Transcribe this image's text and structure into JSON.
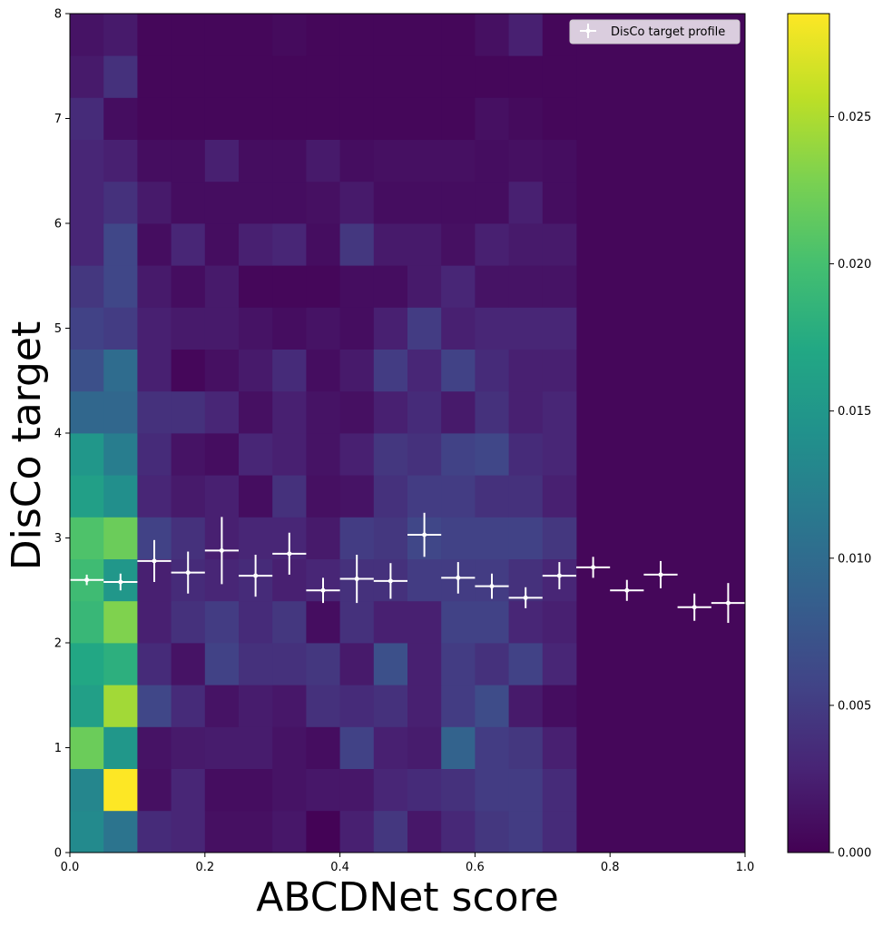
{
  "chart_data": {
    "type": "heatmap",
    "title": "",
    "xlabel": "ABCDNet score",
    "ylabel": "DisCo target",
    "xlim": [
      0,
      1
    ],
    "ylim": [
      0,
      8
    ],
    "xticks": [
      "0.0",
      "0.2",
      "0.4",
      "0.6",
      "0.8",
      "1.0"
    ],
    "yticks": [
      "0",
      "1",
      "2",
      "3",
      "4",
      "5",
      "6",
      "7",
      "8"
    ],
    "colorbar": {
      "min": 0,
      "max": 0.0285,
      "ticks": [
        "0.000",
        "0.005",
        "0.010",
        "0.015",
        "0.020",
        "0.025"
      ],
      "colormap": "viridis"
    },
    "heatmap": {
      "x_bin_count": 15,
      "x_bin_width": 0.05,
      "y_bin_height": 0.4,
      "rows_bottom_to_top": [
        [
          0.0135,
          0.011,
          0.0035,
          0.003,
          0.0012,
          0.0012,
          0.0018,
          0.0002,
          0.0025,
          0.0045,
          0.0018,
          0.0032,
          0.0045,
          0.005,
          0.0035
        ],
        [
          0.013,
          0.0285,
          0.0012,
          0.003,
          0.001,
          0.001,
          0.0015,
          0.0018,
          0.0018,
          0.003,
          0.0035,
          0.004,
          0.005,
          0.005,
          0.0035
        ],
        [
          0.022,
          0.015,
          0.0015,
          0.002,
          0.0022,
          0.0022,
          0.0015,
          0.001,
          0.0055,
          0.0025,
          0.0022,
          0.009,
          0.005,
          0.0045,
          0.0025
        ],
        [
          0.016,
          0.0245,
          0.006,
          0.0035,
          0.0015,
          0.0022,
          0.0018,
          0.004,
          0.0035,
          0.004,
          0.0025,
          0.005,
          0.0065,
          0.002,
          0.001
        ],
        [
          0.017,
          0.018,
          0.0035,
          0.0015,
          0.0055,
          0.004,
          0.004,
          0.0045,
          0.002,
          0.007,
          0.0025,
          0.005,
          0.004,
          0.0055,
          0.003
        ],
        [
          0.019,
          0.023,
          0.0025,
          0.004,
          0.005,
          0.0035,
          0.0045,
          0.001,
          0.004,
          0.0025,
          0.0025,
          0.0055,
          0.0055,
          0.003,
          0.0025
        ],
        [
          0.0195,
          0.015,
          0.0025,
          0.0035,
          0.003,
          0.0035,
          0.0025,
          0.003,
          0.004,
          0.004,
          0.005,
          0.005,
          0.005,
          0.004,
          0.003
        ],
        [
          0.0205,
          0.022,
          0.0055,
          0.004,
          0.0025,
          0.003,
          0.003,
          0.002,
          0.005,
          0.0045,
          0.006,
          0.0055,
          0.0055,
          0.0055,
          0.0045
        ],
        [
          0.016,
          0.014,
          0.003,
          0.002,
          0.0025,
          0.001,
          0.004,
          0.0012,
          0.0015,
          0.004,
          0.005,
          0.005,
          0.004,
          0.004,
          0.0025
        ],
        [
          0.015,
          0.012,
          0.0035,
          0.0015,
          0.001,
          0.003,
          0.0025,
          0.0015,
          0.0025,
          0.0045,
          0.004,
          0.0055,
          0.006,
          0.0035,
          0.003
        ],
        [
          0.0095,
          0.0095,
          0.004,
          0.004,
          0.003,
          0.0012,
          0.0025,
          0.0015,
          0.0012,
          0.0025,
          0.0035,
          0.002,
          0.004,
          0.0025,
          0.003
        ],
        [
          0.007,
          0.01,
          0.0025,
          0.0005,
          0.0012,
          0.002,
          0.0035,
          0.001,
          0.002,
          0.005,
          0.003,
          0.0055,
          0.0035,
          0.0025,
          0.0025
        ],
        [
          0.0055,
          0.005,
          0.0025,
          0.002,
          0.002,
          0.0015,
          0.001,
          0.0015,
          0.001,
          0.0025,
          0.005,
          0.0025,
          0.003,
          0.003,
          0.003
        ],
        [
          0.0045,
          0.006,
          0.002,
          0.001,
          0.002,
          0.0005,
          0.0005,
          0.0005,
          0.001,
          0.001,
          0.002,
          0.003,
          0.0015,
          0.0015,
          0.0015
        ],
        [
          0.003,
          0.006,
          0.001,
          0.003,
          0.001,
          0.0025,
          0.003,
          0.001,
          0.0045,
          0.002,
          0.002,
          0.0012,
          0.0025,
          0.002,
          0.002
        ],
        [
          0.003,
          0.004,
          0.002,
          0.001,
          0.001,
          0.001,
          0.001,
          0.0012,
          0.002,
          0.001,
          0.001,
          0.001,
          0.001,
          0.0025,
          0.001
        ],
        [
          0.003,
          0.0025,
          0.001,
          0.001,
          0.0025,
          0.001,
          0.001,
          0.002,
          0.001,
          0.0012,
          0.0012,
          0.0012,
          0.001,
          0.0012,
          0.001
        ],
        [
          0.0035,
          0.001,
          0.0005,
          0.0005,
          0.0005,
          0.0005,
          0.0005,
          0.0005,
          0.0005,
          0.0005,
          0.0005,
          0.0005,
          0.0012,
          0.0008,
          0.0005
        ],
        [
          0.002,
          0.004,
          0.0005,
          0.0005,
          0.0005,
          0.0005,
          0.0005,
          0.0005,
          0.0005,
          0.0005,
          0.0005,
          0.0005,
          0.0005,
          0.0005,
          0.0005
        ],
        [
          0.0015,
          0.002,
          0.0005,
          0.0005,
          0.0005,
          0.0005,
          0.0008,
          0.0005,
          0.0005,
          0.0005,
          0.0005,
          0.0005,
          0.0012,
          0.0025,
          0.0005
        ]
      ],
      "right_fill_value": 0.0005
    },
    "series": [
      {
        "name": "DisCo target profile",
        "type": "errorbar",
        "color": "#ffffff",
        "x": [
          0.025,
          0.075,
          0.125,
          0.175,
          0.225,
          0.275,
          0.325,
          0.375,
          0.425,
          0.475,
          0.525,
          0.575,
          0.625,
          0.675,
          0.725,
          0.775,
          0.825,
          0.875,
          0.925,
          0.975
        ],
        "y": [
          2.6,
          2.58,
          2.78,
          2.67,
          2.88,
          2.64,
          2.85,
          2.5,
          2.61,
          2.59,
          3.03,
          2.62,
          2.54,
          2.43,
          2.64,
          2.72,
          2.5,
          2.65,
          2.34,
          2.38
        ],
        "yerr": [
          0.05,
          0.08,
          0.2,
          0.2,
          0.32,
          0.2,
          0.2,
          0.12,
          0.23,
          0.17,
          0.21,
          0.15,
          0.12,
          0.1,
          0.13,
          0.1,
          0.1,
          0.13,
          0.13,
          0.19
        ],
        "xerr": 0.025
      }
    ],
    "legend": {
      "position": "top-right",
      "entries": [
        "DisCo target profile"
      ]
    }
  }
}
